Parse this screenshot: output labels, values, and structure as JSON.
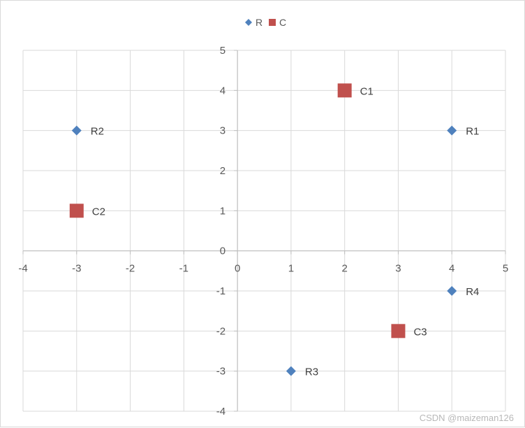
{
  "chart_data": {
    "type": "scatter",
    "xlim": [
      -4,
      5
    ],
    "ylim": [
      -4,
      5
    ],
    "x_ticks": [
      -4,
      -3,
      -2,
      -1,
      0,
      1,
      2,
      3,
      4,
      5
    ],
    "y_ticks": [
      -4,
      -3,
      -2,
      -1,
      0,
      1,
      2,
      3,
      4,
      5
    ],
    "grid": true,
    "legend_position": "top-center",
    "series": [
      {
        "name": "R",
        "marker": "diamond",
        "color": "#4f81bd",
        "points": [
          {
            "label": "R1",
            "x": 4,
            "y": 3
          },
          {
            "label": "R2",
            "x": -3,
            "y": 3
          },
          {
            "label": "R3",
            "x": 1,
            "y": -3
          },
          {
            "label": "R4",
            "x": 4,
            "y": -1
          }
        ]
      },
      {
        "name": "C",
        "marker": "square",
        "color": "#c0504d",
        "points": [
          {
            "label": "C1",
            "x": 2,
            "y": 4
          },
          {
            "label": "C2",
            "x": -3,
            "y": 1
          },
          {
            "label": "C3",
            "x": 3,
            "y": -2
          }
        ]
      }
    ]
  },
  "watermark": "CSDN @maizeman126"
}
